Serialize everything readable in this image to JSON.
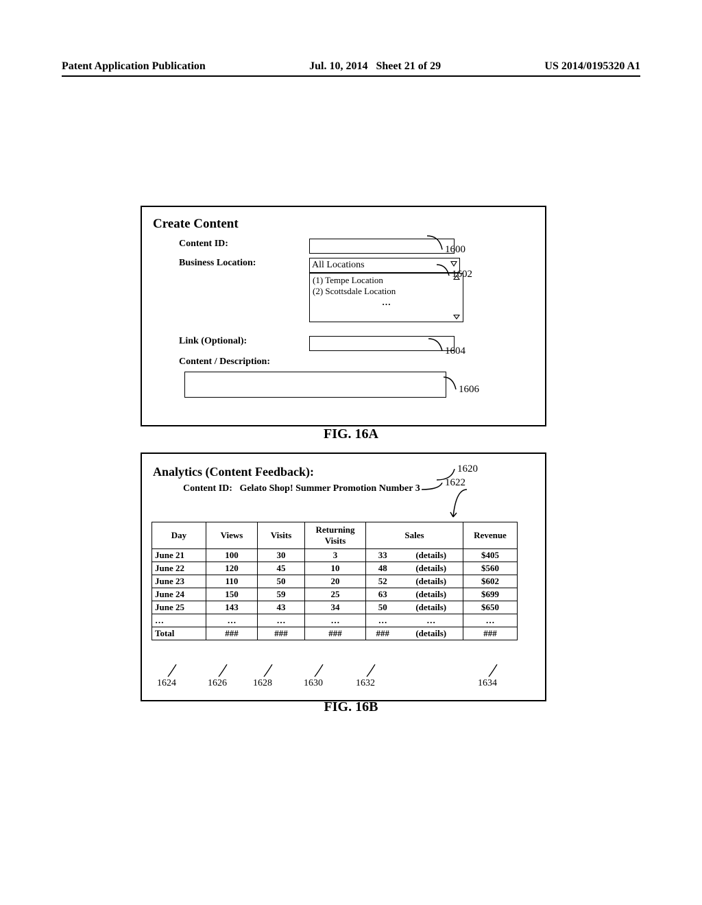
{
  "header": {
    "left": "Patent Application Publication",
    "center_date": "Jul. 10, 2014",
    "center_sheet": "Sheet 21 of 29",
    "right": "US 2014/0195320 A1"
  },
  "figA": {
    "title": "Create Content",
    "labels": {
      "content_id": "Content ID:",
      "business_location": "Business Location:",
      "link": "Link (Optional):",
      "content_desc": "Content / Description:"
    },
    "dropdown_value": "All Locations",
    "list_options": [
      "(1) Tempe Location",
      "(2) Scottsdale Location"
    ],
    "list_more": "…",
    "refs": {
      "r1600": "1600",
      "r1602": "1602",
      "r1604": "1604",
      "r1606": "1606"
    },
    "caption": "FIG. 16A"
  },
  "figB": {
    "title": "Analytics (Content Feedback):",
    "content_id_label": "Content ID:",
    "content_id_value": "Gelato Shop! Summer Promotion Number 3",
    "caption": "FIG. 16B",
    "refs": {
      "r1620": "1620",
      "r1622": "1622"
    },
    "table": {
      "columns": [
        "Day",
        "Views",
        "Visits",
        "Returning Visits",
        "Sales",
        "Revenue"
      ],
      "rows": [
        {
          "day": "June 21",
          "views": "100",
          "visits": "30",
          "ret": "3",
          "sales": "33",
          "details": "(details)",
          "rev": "$405"
        },
        {
          "day": "June 22",
          "views": "120",
          "visits": "45",
          "ret": "10",
          "sales": "48",
          "details": "(details)",
          "rev": "$560"
        },
        {
          "day": "June 23",
          "views": "110",
          "visits": "50",
          "ret": "20",
          "sales": "52",
          "details": "(details)",
          "rev": "$602"
        },
        {
          "day": "June 24",
          "views": "150",
          "visits": "59",
          "ret": "25",
          "sales": "63",
          "details": "(details)",
          "rev": "$699"
        },
        {
          "day": "June 25",
          "views": "143",
          "visits": "43",
          "ret": "34",
          "sales": "50",
          "details": "(details)",
          "rev": "$650"
        },
        {
          "day": "…",
          "views": "…",
          "visits": "…",
          "ret": "…",
          "sales": "…",
          "details": "…",
          "rev": "…"
        },
        {
          "day": "Total",
          "views": "###",
          "visits": "###",
          "ret": "###",
          "sales": "###",
          "details": "(details)",
          "rev": "###"
        }
      ],
      "column_refs": {
        "c1624": "1624",
        "c1626": "1626",
        "c1628": "1628",
        "c1630": "1630",
        "c1632": "1632",
        "c1634": "1634"
      }
    }
  },
  "colors": {
    "fg": "#000000",
    "bg": "#ffffff"
  }
}
